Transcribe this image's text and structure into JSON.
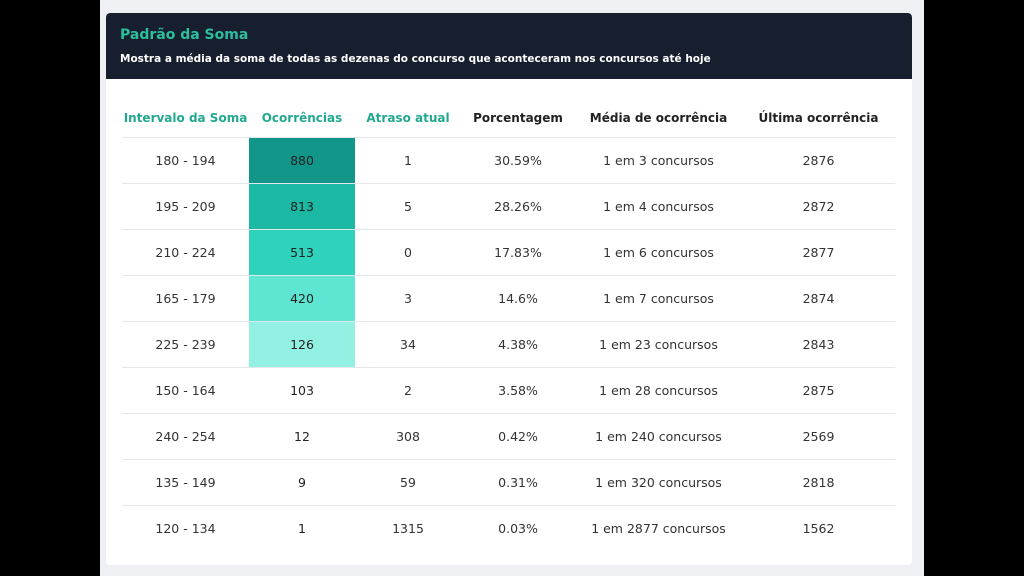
{
  "panel": {
    "title": "Padrão da Soma",
    "subtitle": "Mostra a média da soma de todas as dezenas do concurso que aconteceram nos concursos até hoje"
  },
  "table": {
    "headers": [
      "Intervalo da Soma",
      "Ocorrências",
      "Atraso atual",
      "Porcentagem",
      "Média de ocorrência",
      "Última ocorrência"
    ],
    "rows": [
      {
        "intervalo": "180 - 194",
        "ocorrencias": "880",
        "atraso": "1",
        "porcentagem": "30.59%",
        "media": "1 em 3 concursos",
        "ultima": "2876",
        "highlight": "#13968a"
      },
      {
        "intervalo": "195 - 209",
        "ocorrencias": "813",
        "atraso": "5",
        "porcentagem": "28.26%",
        "media": "1 em 4 concursos",
        "ultima": "2872",
        "highlight": "#1bb8a3"
      },
      {
        "intervalo": "210 - 224",
        "ocorrencias": "513",
        "atraso": "0",
        "porcentagem": "17.83%",
        "media": "1 em 6 concursos",
        "ultima": "2877",
        "highlight": "#2fd2bb"
      },
      {
        "intervalo": "165 - 179",
        "ocorrencias": "420",
        "atraso": "3",
        "porcentagem": "14.6%",
        "media": "1 em 7 concursos",
        "ultima": "2874",
        "highlight": "#5fe6d2"
      },
      {
        "intervalo": "225 - 239",
        "ocorrencias": "126",
        "atraso": "34",
        "porcentagem": "4.38%",
        "media": "1 em 23 concursos",
        "ultima": "2843",
        "highlight": "#93f1e3"
      },
      {
        "intervalo": "150 - 164",
        "ocorrencias": "103",
        "atraso": "2",
        "porcentagem": "3.58%",
        "media": "1 em 28 concursos",
        "ultima": "2875",
        "highlight": ""
      },
      {
        "intervalo": "240 - 254",
        "ocorrencias": "12",
        "atraso": "308",
        "porcentagem": "0.42%",
        "media": "1 em 240 concursos",
        "ultima": "2569",
        "highlight": ""
      },
      {
        "intervalo": "135 - 149",
        "ocorrencias": "9",
        "atraso": "59",
        "porcentagem": "0.31%",
        "media": "1 em 320 concursos",
        "ultima": "2818",
        "highlight": ""
      },
      {
        "intervalo": "120 - 134",
        "ocorrencias": "1",
        "atraso": "1315",
        "porcentagem": "0.03%",
        "media": "1 em 2877 concursos",
        "ultima": "1562",
        "highlight": ""
      }
    ]
  }
}
